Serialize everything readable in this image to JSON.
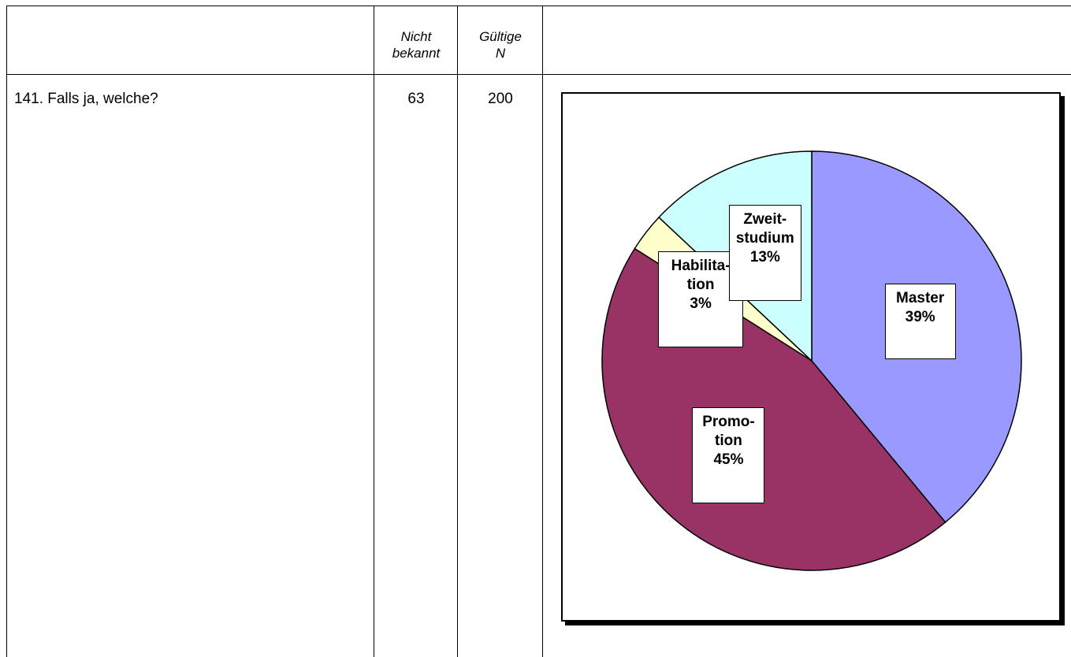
{
  "table": {
    "headers": {
      "nicht_bekannt": "Nicht\nbekannt",
      "gueltige_n": "Gültige\nN"
    },
    "row": {
      "question": "141. Falls ja, welche?",
      "nicht_bekannt": "63",
      "gueltige_n": "200"
    }
  },
  "chart_data": {
    "type": "pie",
    "title": "",
    "start_angle_deg": 0,
    "direction": "clockwise",
    "slices": [
      {
        "name": "Master",
        "label": "Master\n39%",
        "value": 39,
        "color": "#9999ff"
      },
      {
        "name": "Promotion",
        "label": "Promo-\ntion\n45%",
        "value": 45,
        "color": "#993366"
      },
      {
        "name": "Habilitation",
        "label": "Habilita-\ntion\n3%",
        "value": 3,
        "color": "#ffffcc"
      },
      {
        "name": "Zweitstudium",
        "label": "Zweit-\nstudium\n13%",
        "value": 13,
        "color": "#ccffff"
      }
    ]
  }
}
